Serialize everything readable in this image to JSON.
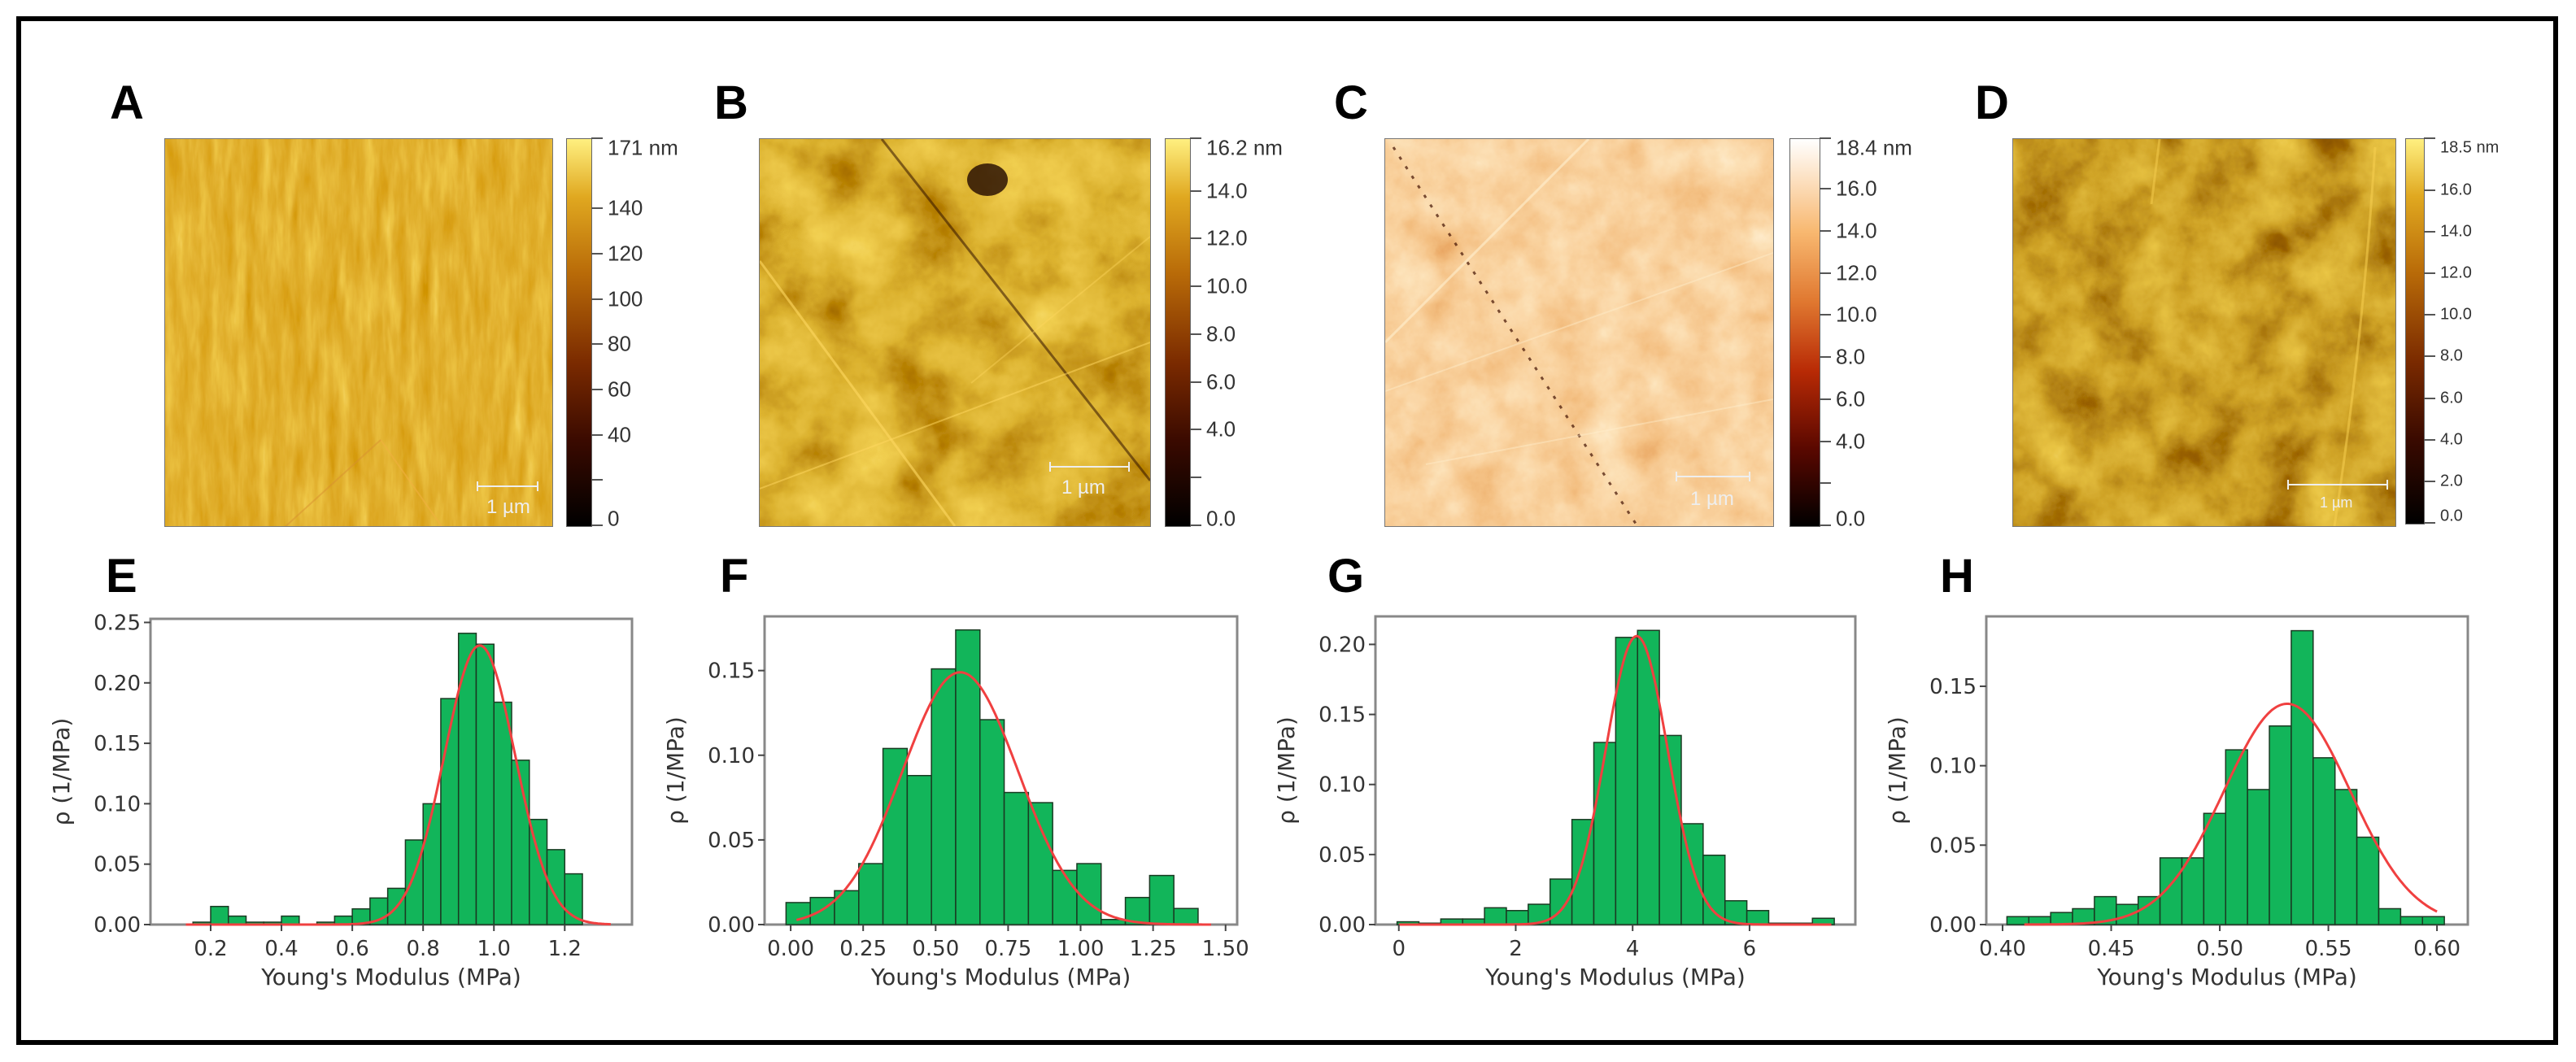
{
  "panels": {
    "A": {
      "letter": "A",
      "colorbar_ticks": [
        {
          "label": "171 nm",
          "value": 171
        },
        {
          "label": "140",
          "value": 140
        },
        {
          "label": "120",
          "value": 120
        },
        {
          "label": "100",
          "value": 100
        },
        {
          "label": "80",
          "value": 80
        },
        {
          "label": "60",
          "value": 60
        },
        {
          "label": "40",
          "value": 40
        },
        {
          "label": "",
          "value": 20
        },
        {
          "label": "0",
          "value": 0
        }
      ],
      "colorbar_max": 171,
      "scale_bar": "1 µm",
      "colormap": "gold"
    },
    "B": {
      "letter": "B",
      "colorbar_ticks": [
        {
          "label": "16.2 nm",
          "value": 16.2
        },
        {
          "label": "14.0",
          "value": 14
        },
        {
          "label": "12.0",
          "value": 12
        },
        {
          "label": "10.0",
          "value": 10
        },
        {
          "label": "8.0",
          "value": 8
        },
        {
          "label": "6.0",
          "value": 6
        },
        {
          "label": "4.0",
          "value": 4
        },
        {
          "label": "",
          "value": 2
        },
        {
          "label": "0.0",
          "value": 0
        }
      ],
      "colorbar_max": 16.2,
      "scale_bar": "1 µm",
      "colormap": "gold"
    },
    "C": {
      "letter": "C",
      "colorbar_ticks": [
        {
          "label": "18.4 nm",
          "value": 18.4
        },
        {
          "label": "16.0",
          "value": 16
        },
        {
          "label": "14.0",
          "value": 14
        },
        {
          "label": "12.0",
          "value": 12
        },
        {
          "label": "10.0",
          "value": 10
        },
        {
          "label": "8.0",
          "value": 8
        },
        {
          "label": "6.0",
          "value": 6
        },
        {
          "label": "4.0",
          "value": 4
        },
        {
          "label": "",
          "value": 2
        },
        {
          "label": "0.0",
          "value": 0
        }
      ],
      "colorbar_max": 18.4,
      "scale_bar": "1 µm",
      "colormap": "red-white"
    },
    "D": {
      "letter": "D",
      "colorbar_ticks": [
        {
          "label": "18.5 nm",
          "value": 18.5
        },
        {
          "label": "16.0",
          "value": 16
        },
        {
          "label": "14.0",
          "value": 14
        },
        {
          "label": "12.0",
          "value": 12
        },
        {
          "label": "10.0",
          "value": 10
        },
        {
          "label": "8.0",
          "value": 8
        },
        {
          "label": "6.0",
          "value": 6
        },
        {
          "label": "4.0",
          "value": 4
        },
        {
          "label": "2.0",
          "value": 2
        },
        {
          "label": "0.0",
          "value": 0
        }
      ],
      "colorbar_max": 18.5,
      "scale_bar": "1 µm",
      "colormap": "gold"
    }
  },
  "colors": {
    "bar_fill": "#12b55a",
    "bar_edge": "#1a3a22",
    "fit_line": "#f04040",
    "axis": "#888888",
    "tick_text": "#333333"
  },
  "chart_data": [
    {
      "panel": "E",
      "type": "bar",
      "subtype": "histogram",
      "xlabel": "Young's Modulus (MPa)",
      "ylabel": "ρ (1/MPa)",
      "xlim": [
        0.03,
        1.39
      ],
      "ylim": [
        0,
        0.253
      ],
      "xticks": [
        {
          "v": 0.2,
          "label": "0.2"
        },
        {
          "v": 0.4,
          "label": "0.4"
        },
        {
          "v": 0.6,
          "label": "0.6"
        },
        {
          "v": 0.8,
          "label": "0.8"
        },
        {
          "v": 1.0,
          "label": "1.0"
        },
        {
          "v": 1.2,
          "label": "1.2"
        }
      ],
      "yticks": [
        {
          "v": 0,
          "label": "0.00"
        },
        {
          "v": 0.05,
          "label": "0.05"
        },
        {
          "v": 0.1,
          "label": "0.10"
        },
        {
          "v": 0.15,
          "label": "0.15"
        },
        {
          "v": 0.2,
          "label": "0.20"
        },
        {
          "v": 0.25,
          "label": "0.25"
        }
      ],
      "bin_start": 0.15,
      "bin_width": 0.05,
      "values": [
        0.002,
        0.015,
        0.007,
        0.002,
        0.002,
        0.007,
        0.0,
        0.002,
        0.007,
        0.013,
        0.022,
        0.03,
        0.07,
        0.1,
        0.187,
        0.241,
        0.232,
        0.184,
        0.136,
        0.087,
        0.062,
        0.042
      ],
      "fit": {
        "type": "gaussian",
        "mean": 0.96,
        "sigma": 0.1,
        "peak": 0.231,
        "range": [
          0.13,
          1.33
        ]
      }
    },
    {
      "panel": "F",
      "type": "bar",
      "subtype": "histogram",
      "xlabel": "Young's Modulus (MPa)",
      "ylabel": "ρ (1/MPa)",
      "xlim": [
        -0.09,
        1.54
      ],
      "ylim": [
        0,
        0.182
      ],
      "xticks": [
        {
          "v": 0,
          "label": "0.00"
        },
        {
          "v": 0.25,
          "label": "0.25"
        },
        {
          "v": 0.5,
          "label": "0.50"
        },
        {
          "v": 0.75,
          "label": "0.75"
        },
        {
          "v": 1.0,
          "label": "1.00"
        },
        {
          "v": 1.25,
          "label": "1.25"
        },
        {
          "v": 1.5,
          "label": "1.50"
        }
      ],
      "yticks": [
        {
          "v": 0,
          "label": "0.00"
        },
        {
          "v": 0.05,
          "label": "0.05"
        },
        {
          "v": 0.1,
          "label": "0.10"
        },
        {
          "v": 0.15,
          "label": "0.15"
        }
      ],
      "bin_start": -0.016,
      "bin_width": 0.0836,
      "values": [
        0.013,
        0.016,
        0.02,
        0.036,
        0.104,
        0.088,
        0.151,
        0.174,
        0.121,
        0.078,
        0.072,
        0.032,
        0.036,
        0.003,
        0.016,
        0.029,
        0.0095
      ],
      "fit": {
        "type": "gaussian",
        "mean": 0.585,
        "sigma": 0.2,
        "peak": 0.149,
        "range": [
          0.02,
          1.45
        ]
      }
    },
    {
      "panel": "G",
      "type": "bar",
      "subtype": "histogram",
      "xlabel": "Young's Modulus (MPa)",
      "ylabel": "ρ (1/MPa)",
      "xlim": [
        -0.4,
        7.81
      ],
      "ylim": [
        0,
        0.22
      ],
      "xticks": [
        {
          "v": 0,
          "label": "0"
        },
        {
          "v": 2,
          "label": "2"
        },
        {
          "v": 4,
          "label": "4"
        },
        {
          "v": 6,
          "label": "6"
        }
      ],
      "yticks": [
        {
          "v": 0,
          "label": "0.00"
        },
        {
          "v": 0.05,
          "label": "0.05"
        },
        {
          "v": 0.1,
          "label": "0.10"
        },
        {
          "v": 0.15,
          "label": "0.15"
        },
        {
          "v": 0.2,
          "label": "0.20"
        }
      ],
      "bin_start": -0.03,
      "bin_width": 0.374,
      "values": [
        0.002,
        0.001,
        0.004,
        0.004,
        0.012,
        0.01,
        0.0145,
        0.0325,
        0.075,
        0.13,
        0.205,
        0.21,
        0.135,
        0.072,
        0.0495,
        0.017,
        0.01,
        0.001,
        0.001,
        0.0045
      ],
      "fit": {
        "type": "gaussian",
        "mean": 4.07,
        "sigma": 0.53,
        "peak": 0.206,
        "range": [
          0.0,
          7.4
        ]
      }
    },
    {
      "panel": "H",
      "type": "bar",
      "subtype": "histogram",
      "xlabel": "Young's Modulus (MPa)",
      "ylabel": "ρ (1/MPa)",
      "xlim": [
        0.3925,
        0.6142
      ],
      "ylim": [
        0,
        0.194
      ],
      "xticks": [
        {
          "v": 0.4,
          "label": "0.40"
        },
        {
          "v": 0.45,
          "label": "0.45"
        },
        {
          "v": 0.5,
          "label": "0.50"
        },
        {
          "v": 0.55,
          "label": "0.55"
        },
        {
          "v": 0.6,
          "label": "0.60"
        }
      ],
      "yticks": [
        {
          "v": 0,
          "label": "0.00"
        },
        {
          "v": 0.05,
          "label": "0.05"
        },
        {
          "v": 0.1,
          "label": "0.10"
        },
        {
          "v": 0.15,
          "label": "0.15"
        }
      ],
      "bin_start": 0.402,
      "bin_width": 0.01007,
      "values": [
        0.005,
        0.005,
        0.0076,
        0.01,
        0.0176,
        0.0127,
        0.0176,
        0.042,
        0.042,
        0.07,
        0.11,
        0.085,
        0.125,
        0.185,
        0.105,
        0.085,
        0.055,
        0.01,
        0.005,
        0.005
      ],
      "fit": {
        "type": "gaussian",
        "mean": 0.531,
        "sigma": 0.029,
        "peak": 0.139,
        "range": [
          0.41,
          0.6
        ]
      }
    }
  ]
}
